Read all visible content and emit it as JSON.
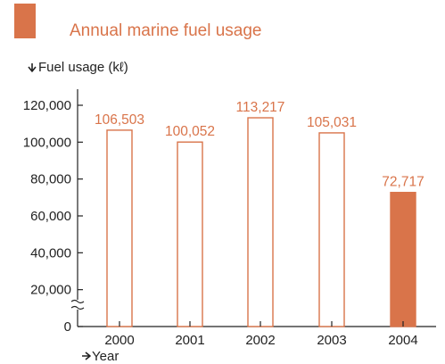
{
  "colors": {
    "accent": "#D9744A",
    "bar_fill_last": "#D9744A",
    "bar_fill": "#ffffff",
    "axis": "#222222"
  },
  "chart_data": {
    "type": "bar",
    "title": "Annual marine fuel usage",
    "ylabel": "Fuel usage (kℓ)",
    "xlabel": "Year",
    "categories": [
      "2000",
      "2001",
      "2002",
      "2003",
      "2004"
    ],
    "values": [
      106503,
      100052,
      113217,
      105031,
      72717
    ],
    "data_labels": [
      "106,503",
      "100,052",
      "113,217",
      "105,031",
      "72,717"
    ],
    "filled": [
      false,
      false,
      false,
      false,
      true
    ],
    "ylim": [
      0,
      120000
    ],
    "yticks": [
      0,
      20000,
      40000,
      60000,
      80000,
      100000,
      120000
    ],
    "ytick_labels": [
      "0",
      "20,000",
      "40,000",
      "60,000",
      "80,000",
      "100,000",
      "120,000"
    ],
    "axis_break": true,
    "grid": false,
    "legend": "none"
  }
}
